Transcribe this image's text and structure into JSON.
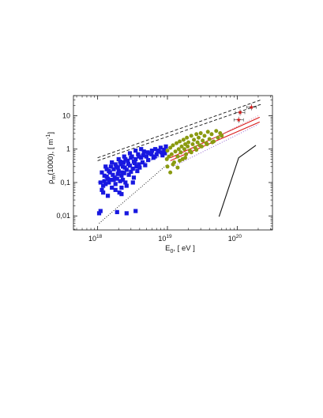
{
  "chart_data": {
    "type": "scatter",
    "xlabel": {
      "base": "E",
      "sub": "0",
      "rest": ",  [ eV ]"
    },
    "ylabel": {
      "base": "ρ",
      "sub": "m",
      "rest": "(1000),  [ m",
      "sup": "-1",
      "close": "]"
    },
    "x_scale": "log",
    "y_scale": "log",
    "xlim": [
      4.5e+17,
      3.2e+20
    ],
    "ylim": [
      0.0038,
      40
    ],
    "x_ticks": [
      {
        "value": 1e+18,
        "base": "10",
        "exp": "18"
      },
      {
        "value": 1e+19,
        "base": "10",
        "exp": "19"
      },
      {
        "value": 1e+20,
        "base": "10",
        "exp": "20"
      }
    ],
    "y_ticks": [
      {
        "value": 0.01,
        "label": "0,01"
      },
      {
        "value": 0.1,
        "label": "0,1"
      },
      {
        "value": 1,
        "label": "1"
      },
      {
        "value": 10,
        "label": "10"
      }
    ],
    "grid": false,
    "colors": {
      "blue": "#1818e0",
      "olive": "#8a9a10",
      "red": "#d81818",
      "black": "#111111"
    },
    "series": [
      {
        "marker": "square",
        "color": "#1818e0",
        "points": [
          [
            1.05e+18,
            0.012
          ],
          [
            1.1e+18,
            0.014
          ],
          [
            1.15e+18,
            0.06
          ],
          [
            1.2e+18,
            0.08
          ],
          [
            1.25e+18,
            0.11
          ],
          [
            1.3e+18,
            0.09
          ],
          [
            1.35e+18,
            0.15
          ],
          [
            1.4e+18,
            0.13
          ],
          [
            1.45e+18,
            0.1
          ],
          [
            1.5e+18,
            0.2
          ],
          [
            1.55e+18,
            0.12
          ],
          [
            1.6e+18,
            0.07
          ],
          [
            1.65e+18,
            0.17
          ],
          [
            1.7e+18,
            0.25
          ],
          [
            1.75e+18,
            0.14
          ],
          [
            1.8e+18,
            0.09
          ],
          [
            1.85e+18,
            0.3
          ],
          [
            1.9e+18,
            0.13
          ],
          [
            1.95e+18,
            0.18
          ],
          [
            2e+18,
            0.22
          ],
          [
            2.05e+18,
            0.05
          ],
          [
            2.1e+18,
            0.11
          ],
          [
            2.15e+18,
            0.35
          ],
          [
            2.2e+18,
            0.16
          ],
          [
            2.25e+18,
            0.2
          ],
          [
            2.3e+18,
            0.12
          ],
          [
            2.35e+18,
            0.4
          ],
          [
            2.4e+18,
            0.19
          ],
          [
            2.45e+18,
            0.28
          ],
          [
            2.5e+18,
            0.1
          ],
          [
            2.6e+18,
            0.24
          ],
          [
            2.7e+18,
            0.45
          ],
          [
            2.8e+18,
            0.17
          ],
          [
            2.9e+18,
            0.32
          ],
          [
            3e+18,
            0.21
          ],
          [
            3.1e+18,
            0.6
          ],
          [
            3.2e+18,
            0.26
          ],
          [
            3.3e+18,
            0.14
          ],
          [
            3.4e+18,
            0.38
          ],
          [
            3.5e+18,
            0.5
          ],
          [
            3.6e+18,
            0.3
          ],
          [
            3.7e+18,
            0.22
          ],
          [
            3.8e+18,
            0.7
          ],
          [
            3.9e+18,
            0.35
          ],
          [
            4e+18,
            0.28
          ],
          [
            4.2e+18,
            0.55
          ],
          [
            4.4e+18,
            0.4
          ],
          [
            4.6e+18,
            0.85
          ],
          [
            4.8e+18,
            0.33
          ],
          [
            5e+18,
            0.6
          ],
          [
            5.3e+18,
            0.47
          ],
          [
            5.6e+18,
            0.75
          ],
          [
            6e+18,
            0.9
          ],
          [
            6.3e+18,
            0.55
          ],
          [
            6.7e+18,
            1.0
          ],
          [
            7e+18,
            0.7
          ],
          [
            7.5e+18,
            0.85
          ],
          [
            8e+18,
            1.1
          ],
          [
            8.5e+18,
            0.65
          ],
          [
            9e+18,
            0.95
          ],
          [
            9.5e+18,
            1.2
          ],
          [
            1.3e+18,
            0.3
          ],
          [
            1.6e+18,
            0.4
          ],
          [
            2e+18,
            0.5
          ],
          [
            2.4e+18,
            0.6
          ],
          [
            2.9e+18,
            0.75
          ],
          [
            3.5e+18,
            0.9
          ],
          [
            4.2e+18,
            1.0
          ],
          [
            1.2e+18,
            0.05
          ],
          [
            1.4e+18,
            0.04
          ],
          [
            1.8e+18,
            0.06
          ],
          [
            2.2e+18,
            0.07
          ],
          [
            2.6e+18,
            0.08
          ],
          [
            3.2e+18,
            0.1
          ],
          [
            1.15e+18,
            0.2
          ],
          [
            1.35e+18,
            0.25
          ],
          [
            1.55e+18,
            0.3
          ],
          [
            1.8e+18,
            0.35
          ],
          [
            2.1e+18,
            0.42
          ],
          [
            2.5e+18,
            0.5
          ],
          [
            3e+18,
            0.55
          ],
          [
            1.1e+18,
            0.1
          ],
          [
            1.25e+18,
            0.16
          ],
          [
            1.45e+18,
            0.22
          ],
          [
            1.7e+18,
            0.12
          ],
          [
            1.95e+18,
            0.28
          ],
          [
            2.3e+18,
            0.3
          ],
          [
            2.75e+18,
            0.36
          ],
          [
            3.3e+18,
            0.42
          ],
          [
            3.9e+18,
            0.6
          ],
          [
            4.5e+18,
            0.65
          ],
          [
            5.2e+18,
            0.8
          ],
          [
            5.9e+18,
            0.7
          ],
          [
            6.6e+18,
            0.6
          ],
          [
            7.3e+18,
            0.9
          ],
          [
            8.2e+18,
            0.8
          ],
          [
            9.2e+18,
            0.75
          ],
          [
            1.9e+18,
            0.013
          ],
          [
            2.6e+18,
            0.012
          ],
          [
            3.5e+18,
            0.014
          ],
          [
            2.2e+18,
            0.045
          ]
        ]
      },
      {
        "marker": "circle",
        "color": "#8a9a10",
        "points": [
          [
            9.8e+18,
            0.5
          ],
          [
            1e+19,
            0.9
          ],
          [
            1.05e+19,
            0.6
          ],
          [
            1.1e+19,
            1.1
          ],
          [
            1.15e+19,
            0.7
          ],
          [
            1.2e+19,
            1.3
          ],
          [
            1.25e+19,
            0.4
          ],
          [
            1.3e+19,
            0.85
          ],
          [
            1.35e+19,
            1.5
          ],
          [
            1.4e+19,
            0.6
          ],
          [
            1.45e+19,
            1.0
          ],
          [
            1.5e+19,
            1.7
          ],
          [
            1.55e+19,
            0.8
          ],
          [
            1.6e+19,
            1.2
          ],
          [
            1.65e+19,
            0.5
          ],
          [
            1.7e+19,
            1.9
          ],
          [
            1.75e+19,
            1.0
          ],
          [
            1.8e+19,
            1.4
          ],
          [
            1.85e+19,
            0.7
          ],
          [
            1.9e+19,
            2.2
          ],
          [
            1.95e+19,
            1.2
          ],
          [
            2e+19,
            1.6
          ],
          [
            2.1e+19,
            0.9
          ],
          [
            2.2e+19,
            2.5
          ],
          [
            2.3e+19,
            1.4
          ],
          [
            2.4e+19,
            1.9
          ],
          [
            2.5e+19,
            1.1
          ],
          [
            2.6e+19,
            2.8
          ],
          [
            2.7e+19,
            1.6
          ],
          [
            2.8e+19,
            2.2
          ],
          [
            2.9e+19,
            1.3
          ],
          [
            3e+19,
            3.0
          ],
          [
            3.2e+19,
            1.8
          ],
          [
            3.4e+19,
            2.5
          ],
          [
            3.6e+19,
            1.5
          ],
          [
            3.8e+19,
            3.3
          ],
          [
            4e+19,
            2.0
          ],
          [
            4.3e+19,
            2.8
          ],
          [
            4.6e+19,
            1.7
          ],
          [
            5e+19,
            3.5
          ],
          [
            5.3e+19,
            2.2
          ],
          [
            5.7e+19,
            3.0
          ],
          [
            6e+19,
            2.5
          ],
          [
            1e+19,
            0.3
          ],
          [
            1.2e+19,
            0.35
          ],
          [
            1.5e+19,
            0.45
          ],
          [
            1.8e+19,
            0.55
          ],
          [
            2.2e+19,
            0.8
          ],
          [
            2.6e+19,
            0.95
          ],
          [
            3.1e+19,
            1.2
          ],
          [
            3.7e+19,
            1.4
          ],
          [
            4.4e+19,
            1.6
          ],
          [
            1.1e+19,
            0.2
          ],
          [
            1.4e+19,
            0.28
          ]
        ]
      },
      {
        "marker": "star",
        "color": "#d81818",
        "error_bars": true,
        "points": [
          [
            1.05e+20,
            7.5
          ],
          [
            1.1e+20,
            12.5
          ],
          [
            1.6e+20,
            18.0
          ]
        ]
      }
    ],
    "lines": [
      {
        "color": "#111111",
        "style": "dashed",
        "points": [
          [
            1e+18,
            0.55
          ],
          [
            2.2e+20,
            30
          ]
        ]
      },
      {
        "color": "#111111",
        "style": "dashed",
        "points": [
          [
            1e+18,
            0.45
          ],
          [
            2.2e+20,
            22
          ]
        ]
      },
      {
        "color": "#111111",
        "style": "dotted",
        "points": [
          [
            1.05e+18,
            0.006
          ],
          [
            1e+19,
            0.35
          ]
        ]
      },
      {
        "color": "#8888dd",
        "style": "dashdot",
        "points": [
          [
            1e+18,
            0.1
          ],
          [
            1e+19,
            0.75
          ]
        ]
      },
      {
        "color": "#d81818",
        "style": "solid",
        "points": [
          [
            1.1e+19,
            0.55
          ],
          [
            2.1e+20,
            9.0
          ]
        ]
      },
      {
        "color": "#d81818",
        "style": "solid",
        "points": [
          [
            1.1e+19,
            0.45
          ],
          [
            2.1e+20,
            6.5
          ]
        ]
      },
      {
        "color": "#cc88aa",
        "style": "dotted",
        "points": [
          [
            1.2e+19,
            0.5
          ],
          [
            2e+20,
            10.0
          ]
        ]
      },
      {
        "color": "#8855cc",
        "style": "dotted",
        "points": [
          [
            1.2e+19,
            0.3
          ],
          [
            2e+20,
            5.5
          ]
        ]
      },
      {
        "color": "#111111",
        "style": "solid",
        "points": [
          [
            5.5e+19,
            0.0095
          ],
          [
            1.05e+20,
            0.55
          ],
          [
            1.85e+20,
            1.3
          ]
        ]
      }
    ]
  }
}
